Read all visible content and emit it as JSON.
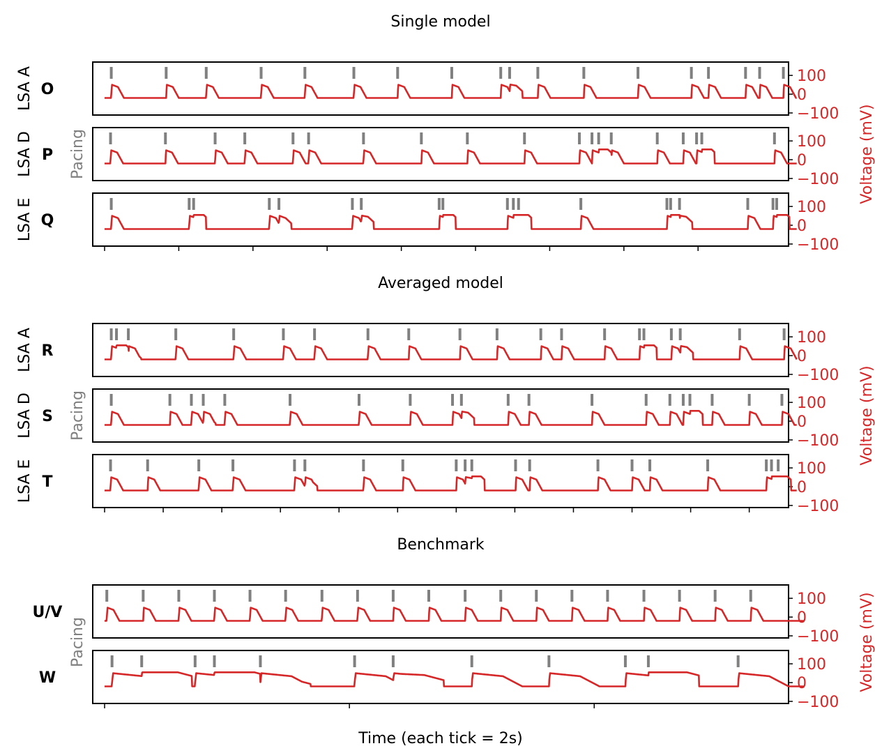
{
  "figure": {
    "xlabel": "Time (each tick = 2s)",
    "colors": {
      "voltage": "#d62728",
      "pacing": "#808080",
      "axis": "#000000",
      "label": "#000000"
    },
    "pacing_label": "Pacing",
    "voltage_label": "Voltage (mV)"
  },
  "chart_data": [
    {
      "type": "line",
      "group": "Single model",
      "yticks": [
        100,
        0,
        -100
      ],
      "panels": [
        {
          "id": "O",
          "row_label": "LSA A",
          "pacing_times": [
            0.9,
            8.3,
            13.7,
            21.1,
            27.0,
            33.6,
            39.5,
            46.8,
            53.4,
            54.6,
            58.4,
            64.6,
            71.9,
            79.1,
            81.4,
            86.4,
            88.3,
            91.5
          ],
          "v_end": 93.3
        },
        {
          "id": "P",
          "row_label": "LSA D",
          "pacing_times": [
            0.8,
            8.2,
            14.9,
            18.9,
            25.4,
            27.5,
            34.9,
            42.7,
            48.9,
            56.6,
            64.0,
            65.7,
            66.6,
            68.3,
            74.5,
            78.0,
            79.8,
            80.5,
            90.3
          ],
          "v_end": 93.3
        },
        {
          "id": "Q",
          "row_label": "LSA E",
          "pacing_times": [
            0.9,
            11.4,
            12.0,
            22.2,
            23.5,
            33.4,
            34.6,
            45.1,
            45.6,
            54.3,
            55.1,
            55.8,
            64.2,
            75.8,
            76.3,
            77.5,
            86.7,
            90.1,
            90.6
          ],
          "v_end": 93.3
        }
      ]
    },
    {
      "type": "line",
      "group": "Averaged model",
      "yticks": [
        100,
        0,
        -100
      ],
      "panels": [
        {
          "id": "R",
          "row_label": "LSA A",
          "pacing_times": [
            0.9,
            1.6,
            3.2,
            9.6,
            17.4,
            24.1,
            28.3,
            35.5,
            41.0,
            47.9,
            52.9,
            58.8,
            61.6,
            67.4,
            72.1,
            72.7,
            76.4,
            77.6,
            85.6,
            91.6
          ],
          "v_end": 93.3
        },
        {
          "id": "S",
          "row_label": "LSA D",
          "pacing_times": [
            0.9,
            8.8,
            11.7,
            13.3,
            16.2,
            25.0,
            34.3,
            41.2,
            46.9,
            48.1,
            54.4,
            57.2,
            65.7,
            73.0,
            76.2,
            78.0,
            78.9,
            81.9,
            86.9,
            91.3
          ],
          "v_end": 93.3
        },
        {
          "id": "T",
          "row_label": "LSA E",
          "pacing_times": [
            0.8,
            5.8,
            12.7,
            17.3,
            25.6,
            27.0,
            34.9,
            40.2,
            47.4,
            48.6,
            49.5,
            55.4,
            57.3,
            66.5,
            71.1,
            73.5,
            81.3,
            89.2,
            89.9,
            90.8
          ],
          "v_end": 93.3
        }
      ]
    },
    {
      "type": "line",
      "group": "Benchmark",
      "yticks": [
        100,
        0,
        -100
      ],
      "panels": [
        {
          "id": "U/V",
          "row_label": "",
          "pacing_times": [
            0.3,
            5.2,
            10.0,
            14.8,
            19.6,
            24.4,
            29.3,
            34.1,
            38.9,
            43.7,
            48.6,
            53.4,
            58.2,
            63.0,
            67.8,
            72.7,
            77.5,
            82.3,
            87.1
          ],
          "v_end": 94.3
        },
        {
          "id": "W",
          "row_label": "",
          "pacing_times": [
            1.0,
            5.0,
            12.2,
            14.8,
            21.0,
            33.7,
            38.9,
            49.5,
            59.9,
            70.2,
            73.3,
            85.4
          ],
          "v_end": 94.3
        }
      ]
    }
  ]
}
